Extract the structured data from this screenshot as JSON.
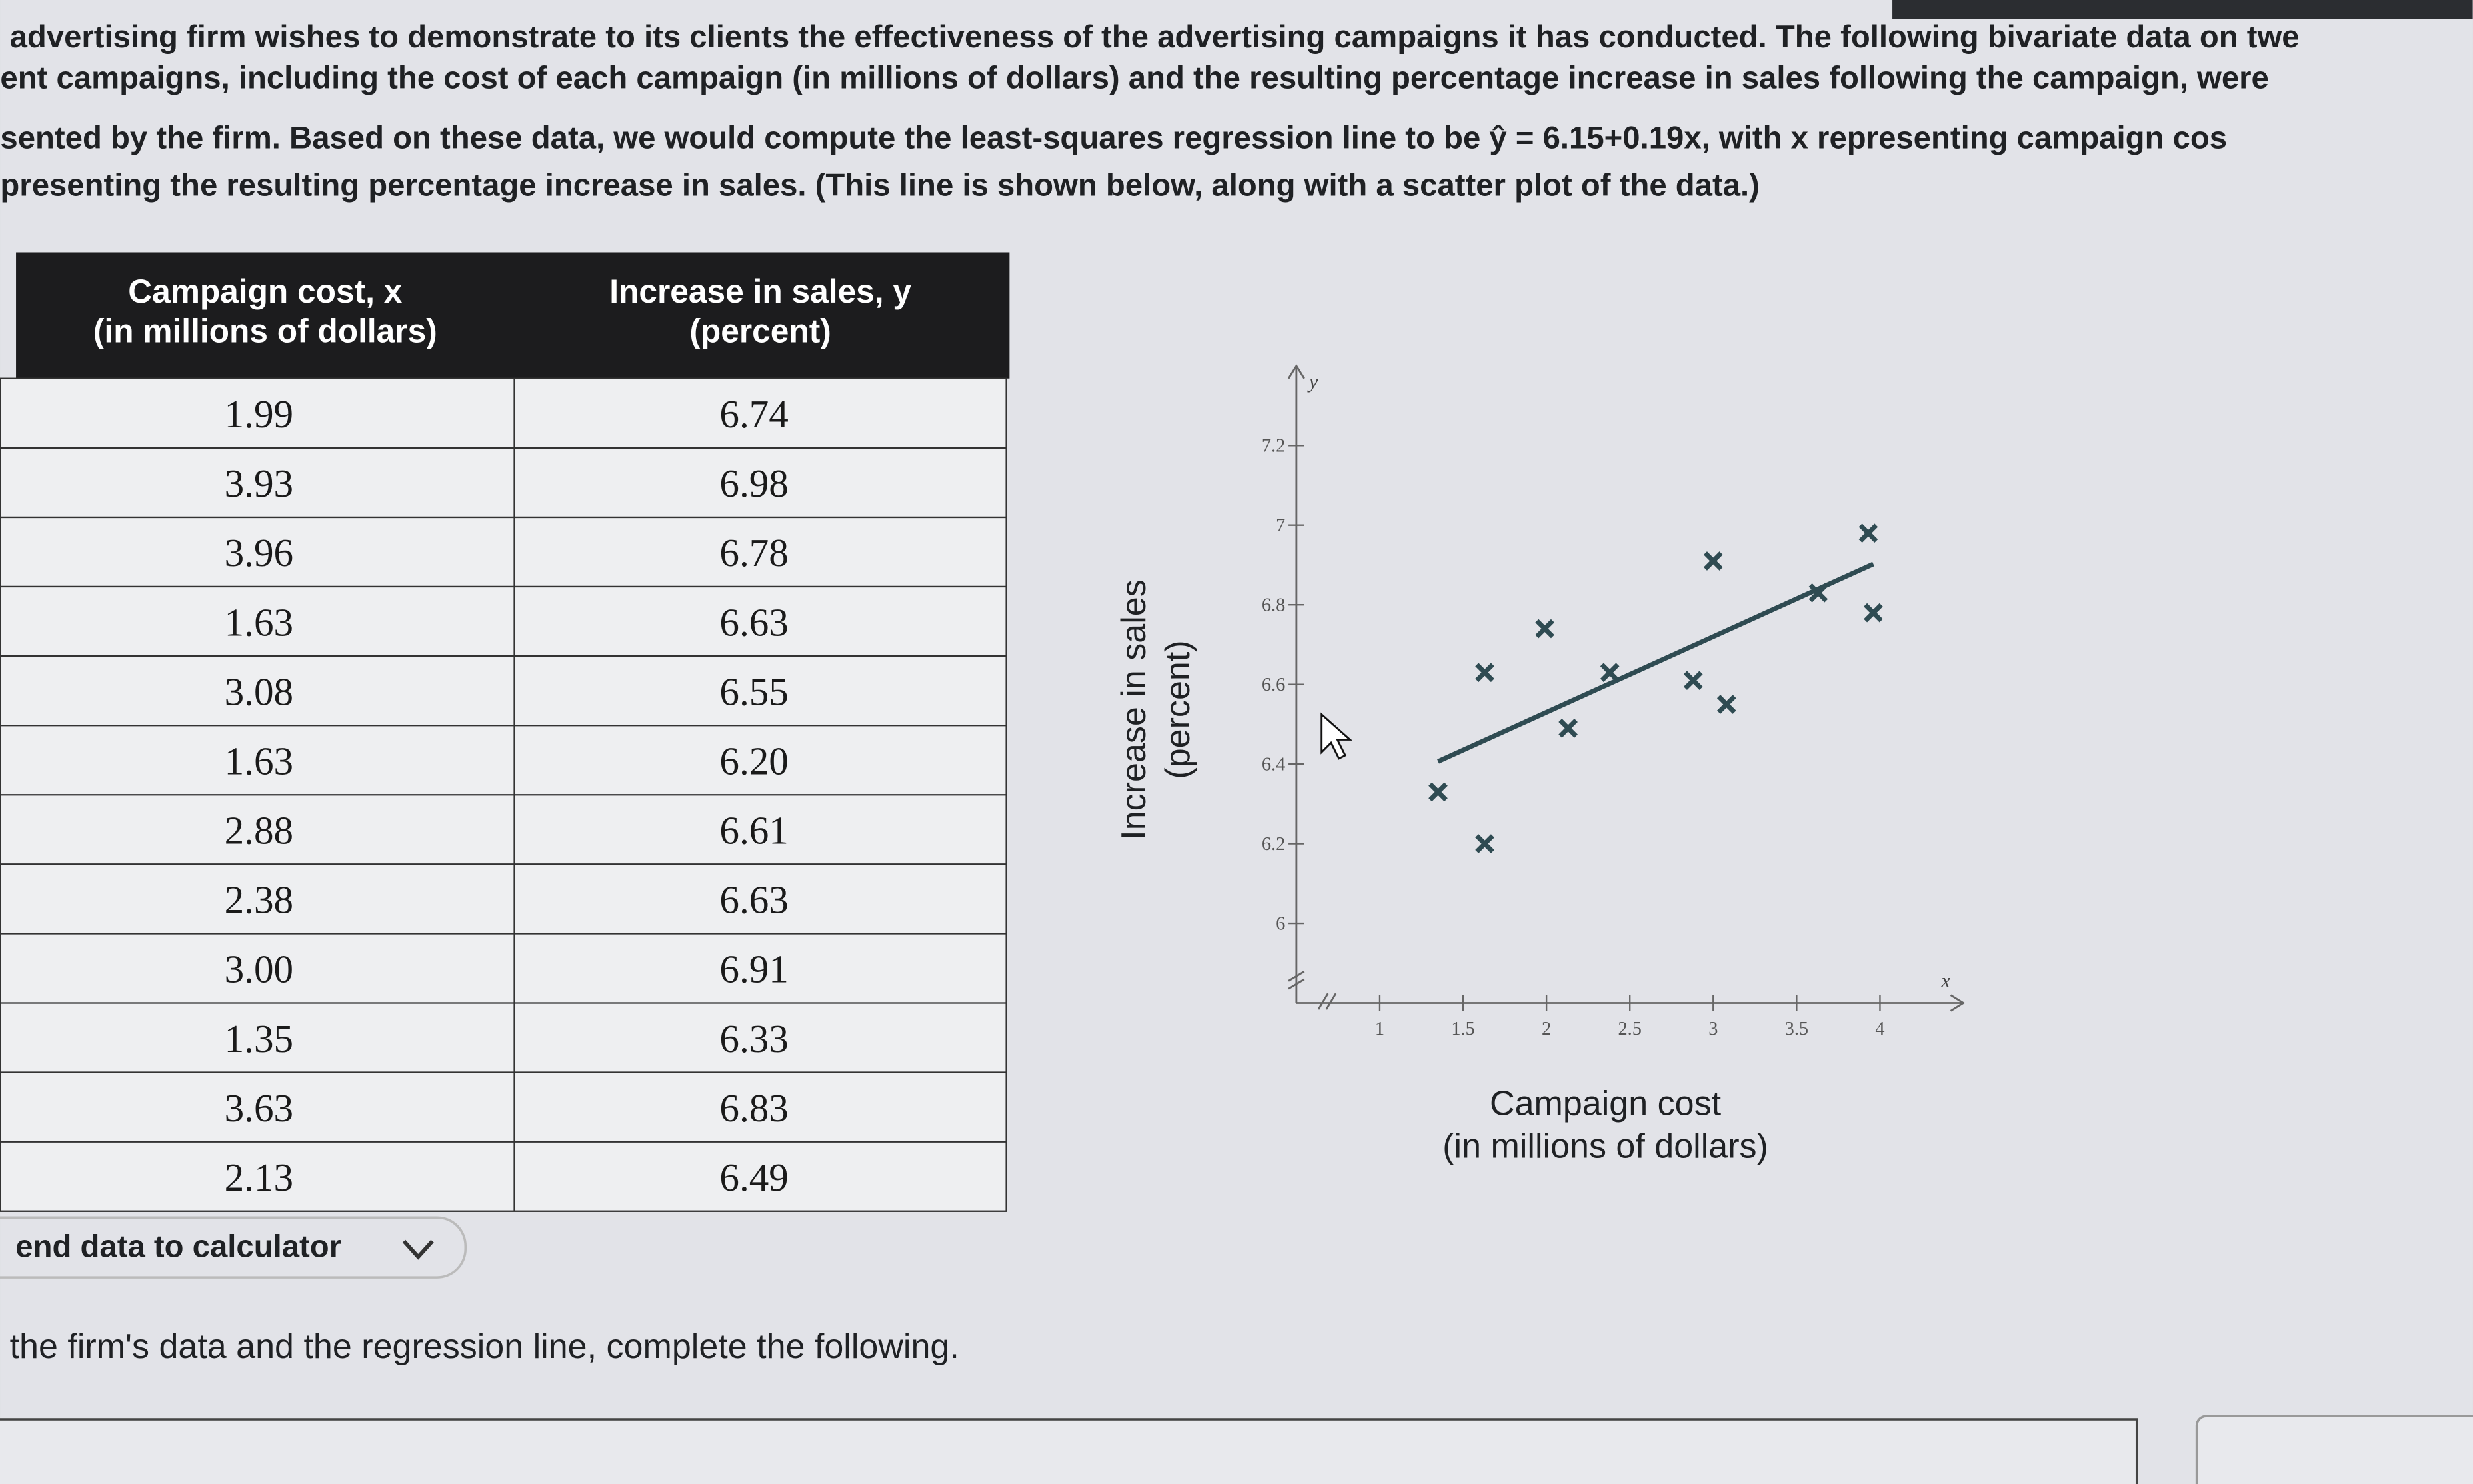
{
  "intro": {
    "lines": [
      "advertising firm wishes to demonstrate to its clients the effectiveness of the advertising campaigns it has conducted. The following bivariate data on twe",
      "ent campaigns, including the cost of each campaign (in millions of dollars) and the resulting percentage increase in sales following the campaign, were",
      "sented by the firm. Based on these data, we would compute the least-squares regression line to be ŷ = 6.15+0.19x, with x representing campaign cos",
      "presenting the resulting percentage increase in sales. (This line is shown below, along with a scatter plot of the data.)"
    ]
  },
  "table": {
    "headers": [
      [
        "Campaign cost, x",
        "(in millions of dollars)"
      ],
      [
        "Increase in sales, y",
        "(percent)"
      ]
    ],
    "rows": [
      [
        "1.99",
        "6.74"
      ],
      [
        "3.93",
        "6.98"
      ],
      [
        "3.96",
        "6.78"
      ],
      [
        "1.63",
        "6.63"
      ],
      [
        "3.08",
        "6.55"
      ],
      [
        "1.63",
        "6.20"
      ],
      [
        "2.88",
        "6.61"
      ],
      [
        "2.38",
        "6.63"
      ],
      [
        "3.00",
        "6.91"
      ],
      [
        "1.35",
        "6.33"
      ],
      [
        "3.63",
        "6.83"
      ],
      [
        "2.13",
        "6.49"
      ]
    ]
  },
  "button": {
    "label": "end data to calculator"
  },
  "chart_data": {
    "type": "scatter",
    "x": [
      1.99,
      3.93,
      3.96,
      1.63,
      3.08,
      1.63,
      2.88,
      2.38,
      3.0,
      1.35,
      3.63,
      2.13
    ],
    "values": [
      6.74,
      6.98,
      6.78,
      6.63,
      6.55,
      6.2,
      6.61,
      6.63,
      6.91,
      6.33,
      6.83,
      6.49
    ],
    "fit": {
      "intercept": 6.15,
      "slope": 0.19
    },
    "xlim": [
      0.5,
      4.5
    ],
    "ylim": [
      5.8,
      7.4
    ],
    "xticks": [
      1,
      1.5,
      2,
      2.5,
      3,
      3.5,
      4
    ],
    "yticks": [
      6,
      6.2,
      6.4,
      6.6,
      6.8,
      7,
      7.2
    ],
    "x_label": "x",
    "y_label": "y",
    "x_title": [
      "Campaign cost",
      "(in millions of dollars)"
    ],
    "y_title": [
      "Increase in sales",
      "(percent)"
    ],
    "color": "#2f4b52"
  },
  "prompt": "the firm's data and the regression line, complete the following."
}
